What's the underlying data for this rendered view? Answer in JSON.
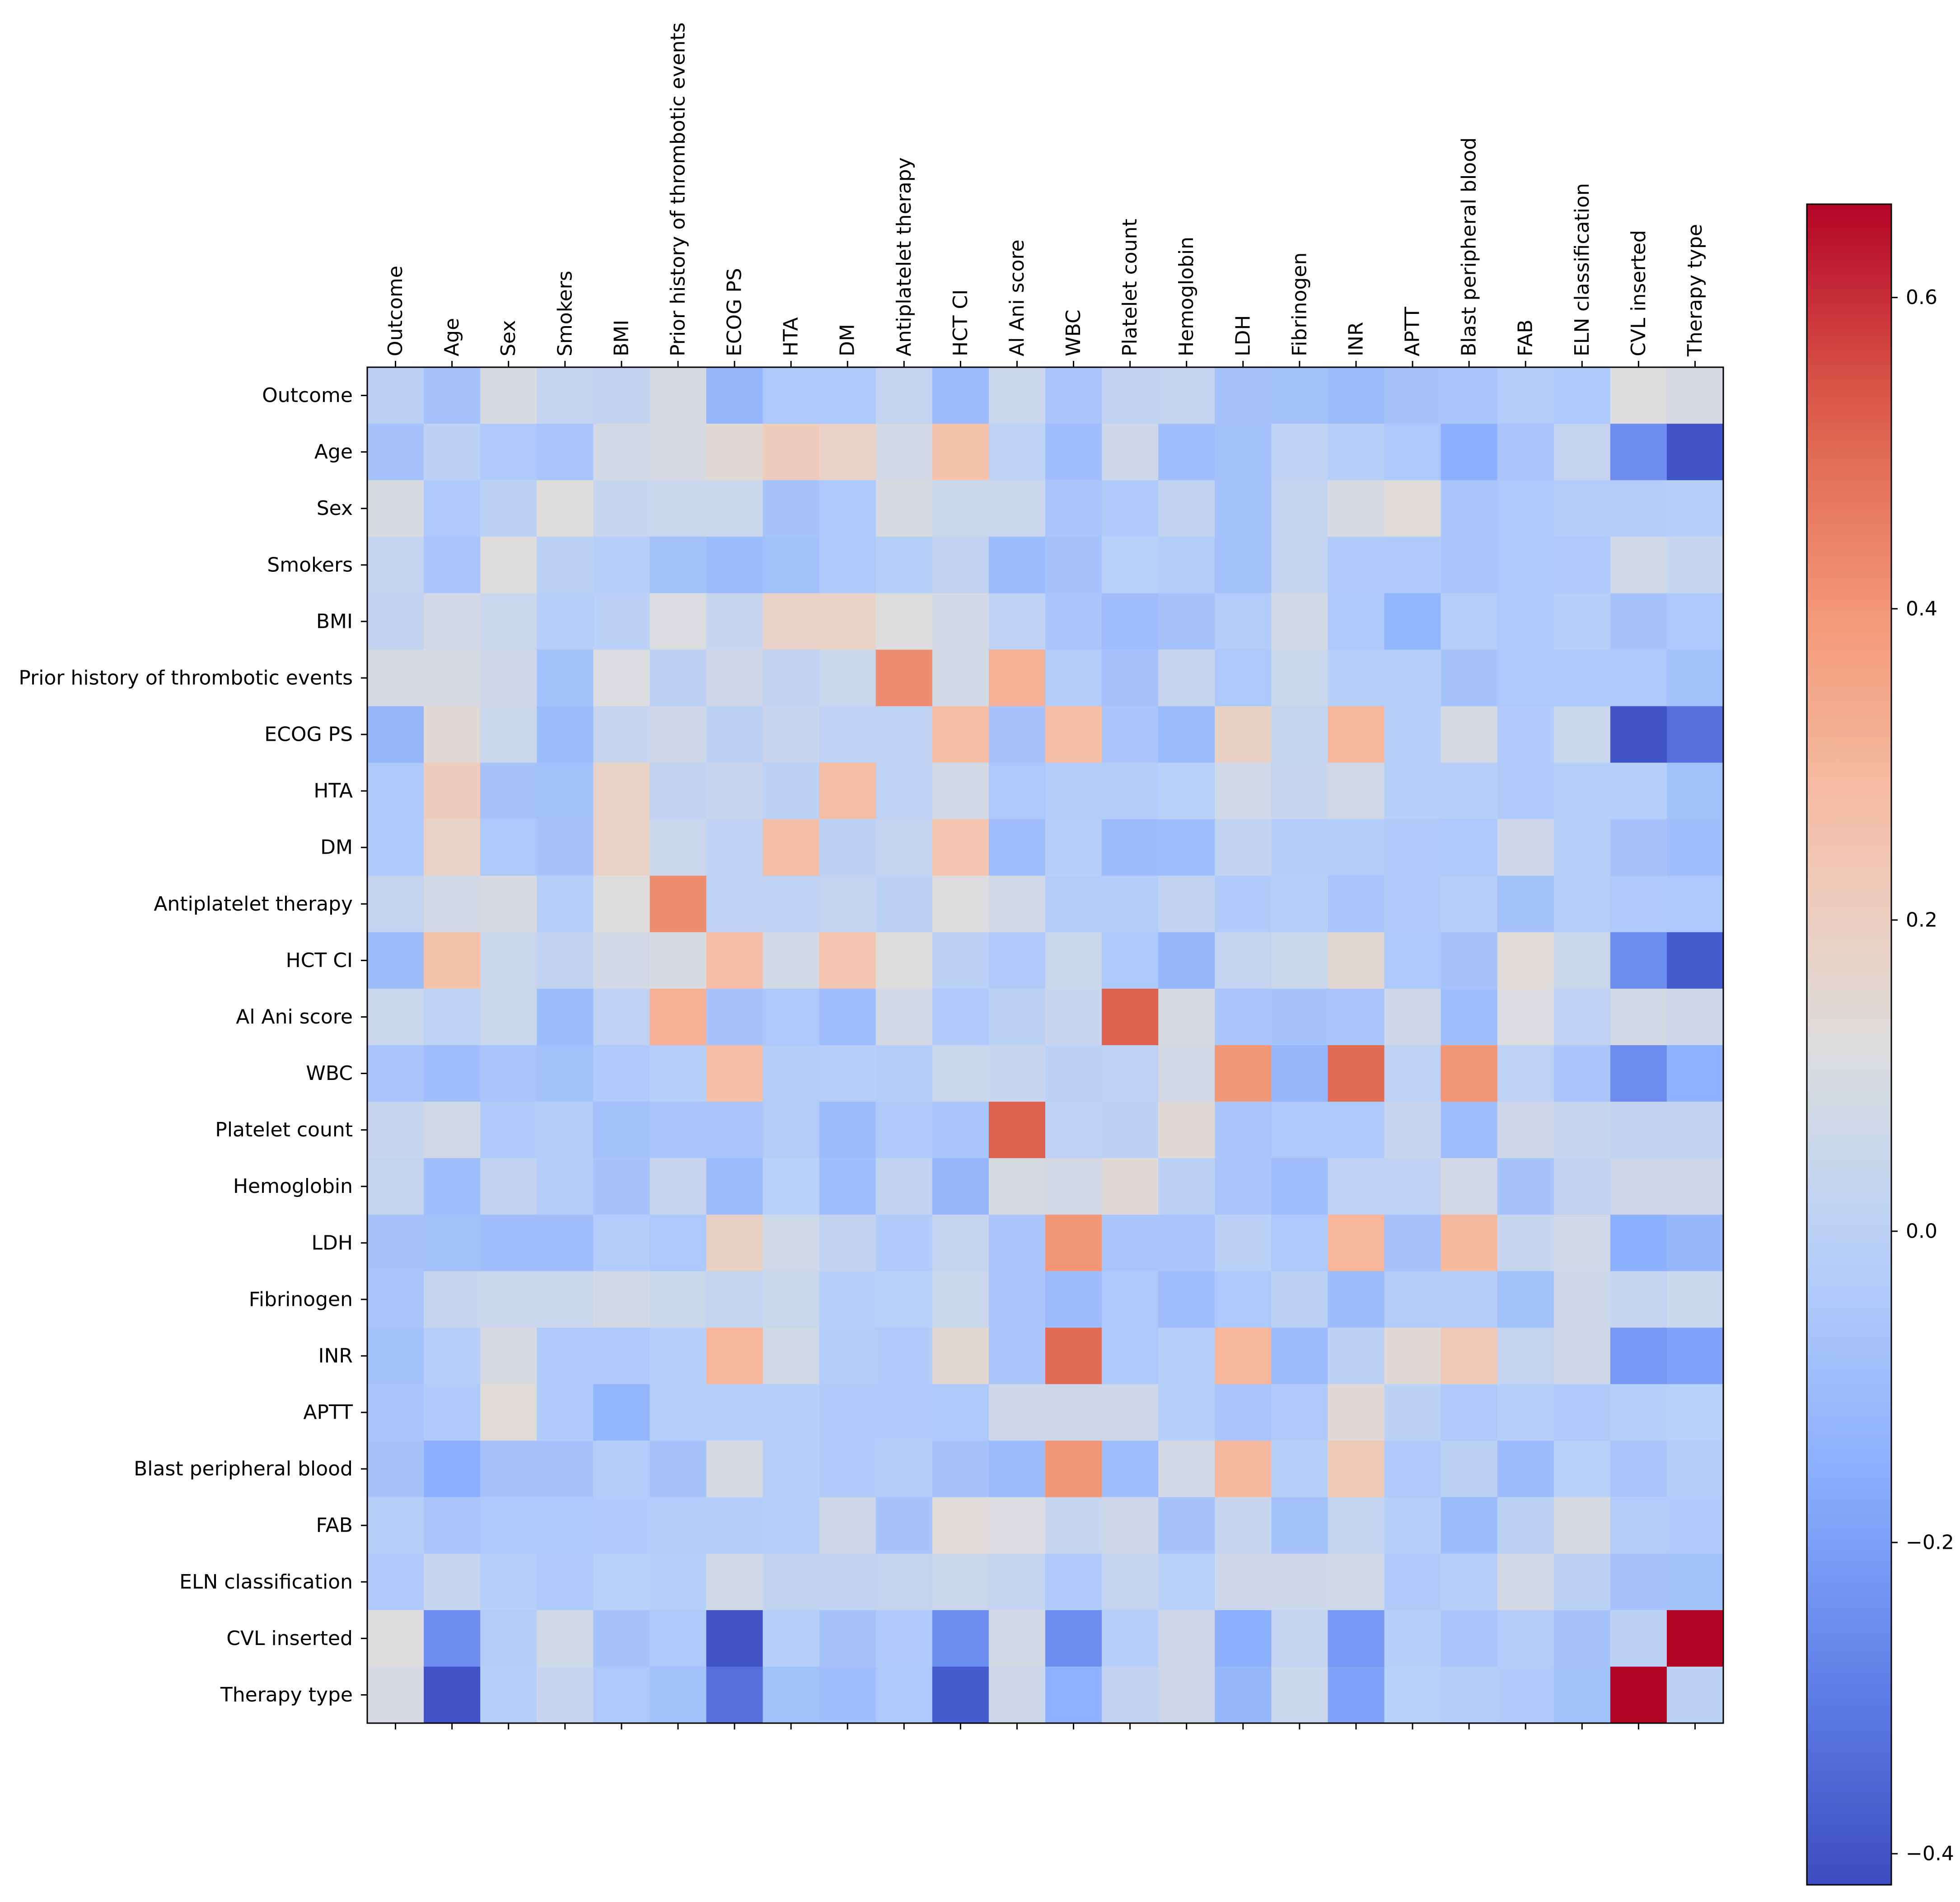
{
  "chart_data": {
    "type": "heatmap",
    "title": "",
    "xlabel": "",
    "ylabel": "",
    "labels": [
      "Outcome",
      "Age",
      "Sex",
      "Smokers",
      "BMI",
      "Prior history of thrombotic events",
      "ECOG PS",
      "HTA",
      "DM",
      "Antiplatelet therapy",
      "HCT CI",
      "Al Ani score",
      "WBC",
      "Platelet count",
      "Hemoglobin",
      "LDH",
      "Fibrinogen",
      "INR",
      "APTT",
      "Blast peripheral blood",
      "FAB",
      "ELN classification",
      "CVL inserted",
      "Therapy type"
    ],
    "colormap": "coolwarm",
    "vmin": -0.42,
    "vmax": 0.66,
    "colorbar_ticks": [
      -0.4,
      -0.2,
      0.0,
      0.2,
      0.4,
      0.6
    ],
    "colorbar_tick_labels": [
      "−0.4",
      "−0.2",
      "0.0",
      "0.2",
      "0.4",
      "0.6"
    ],
    "matrix": [
      [
        0.0,
        -0.07,
        0.1,
        0.03,
        0.02,
        0.09,
        -0.12,
        -0.05,
        -0.05,
        0.03,
        -0.1,
        0.05,
        -0.06,
        0.02,
        0.03,
        -0.07,
        -0.08,
        -0.1,
        -0.07,
        -0.06,
        -0.03,
        -0.05,
        0.12,
        0.09
      ],
      [
        -0.07,
        0.0,
        -0.04,
        -0.06,
        0.08,
        0.09,
        0.14,
        0.21,
        0.18,
        0.08,
        0.26,
        0.01,
        -0.09,
        0.06,
        -0.09,
        -0.08,
        0.01,
        -0.02,
        -0.05,
        -0.15,
        -0.06,
        0.03,
        -0.25,
        -0.4
      ],
      [
        0.1,
        -0.04,
        0.0,
        0.12,
        0.04,
        0.05,
        0.05,
        -0.07,
        -0.05,
        0.1,
        0.05,
        0.05,
        -0.06,
        -0.04,
        0.02,
        -0.08,
        0.03,
        0.1,
        0.13,
        -0.06,
        -0.05,
        -0.03,
        -0.03,
        -0.02
      ],
      [
        0.03,
        -0.06,
        0.12,
        0.0,
        -0.02,
        -0.08,
        -0.1,
        -0.08,
        -0.05,
        -0.02,
        0.02,
        -0.1,
        -0.07,
        -0.01,
        -0.03,
        -0.08,
        0.03,
        -0.04,
        -0.04,
        -0.06,
        -0.05,
        -0.04,
        0.07,
        0.04
      ],
      [
        0.02,
        0.08,
        0.05,
        -0.02,
        0.0,
        0.11,
        0.04,
        0.18,
        0.18,
        0.12,
        0.08,
        0.01,
        -0.06,
        -0.09,
        -0.07,
        -0.03,
        0.08,
        -0.05,
        -0.13,
        -0.02,
        -0.05,
        -0.02,
        -0.07,
        -0.05
      ],
      [
        0.09,
        0.09,
        0.06,
        -0.08,
        0.11,
        0.0,
        0.06,
        0.02,
        0.05,
        0.42,
        0.08,
        0.32,
        -0.03,
        -0.07,
        0.04,
        -0.05,
        0.05,
        -0.02,
        -0.02,
        -0.07,
        -0.05,
        -0.05,
        -0.05,
        -0.08
      ],
      [
        -0.12,
        0.14,
        0.05,
        -0.1,
        0.04,
        0.06,
        0.0,
        0.04,
        0.01,
        0.01,
        0.27,
        -0.07,
        0.27,
        -0.06,
        -0.1,
        0.19,
        0.03,
        0.3,
        -0.02,
        0.09,
        -0.04,
        0.05,
        -0.4,
        -0.33
      ],
      [
        -0.05,
        0.21,
        -0.07,
        -0.08,
        0.18,
        0.02,
        0.04,
        0.0,
        0.27,
        0.01,
        0.08,
        -0.05,
        -0.03,
        -0.03,
        -0.01,
        0.07,
        0.04,
        0.07,
        -0.02,
        -0.02,
        -0.04,
        -0.02,
        -0.02,
        -0.08
      ],
      [
        -0.05,
        0.18,
        -0.05,
        -0.07,
        0.18,
        0.05,
        0.01,
        0.27,
        0.0,
        0.03,
        0.25,
        -0.09,
        -0.02,
        -0.1,
        -0.09,
        0.02,
        -0.03,
        -0.03,
        -0.04,
        -0.05,
        0.06,
        -0.02,
        -0.07,
        -0.09
      ],
      [
        0.03,
        0.08,
        0.1,
        -0.02,
        0.12,
        0.42,
        0.01,
        0.01,
        0.03,
        0.0,
        0.12,
        0.08,
        -0.03,
        -0.03,
        0.02,
        -0.04,
        -0.02,
        -0.06,
        -0.04,
        -0.02,
        -0.08,
        -0.02,
        -0.04,
        -0.05
      ],
      [
        -0.1,
        0.26,
        0.05,
        0.02,
        0.08,
        0.1,
        0.27,
        0.08,
        0.25,
        0.12,
        0.0,
        -0.04,
        0.05,
        -0.05,
        -0.12,
        0.03,
        0.05,
        0.15,
        -0.05,
        -0.07,
        0.13,
        0.05,
        -0.25,
        -0.38
      ],
      [
        0.05,
        0.01,
        0.05,
        -0.1,
        0.01,
        0.32,
        -0.07,
        -0.05,
        -0.09,
        0.08,
        -0.04,
        0.0,
        0.04,
        0.52,
        0.09,
        -0.06,
        -0.07,
        -0.06,
        0.06,
        -0.09,
        0.11,
        0.01,
        0.08,
        0.06
      ],
      [
        -0.06,
        -0.09,
        -0.06,
        -0.08,
        -0.04,
        -0.02,
        0.27,
        -0.03,
        -0.02,
        -0.03,
        0.05,
        0.04,
        0.0,
        0.01,
        0.08,
        0.4,
        -0.12,
        0.5,
        0.01,
        0.4,
        0.01,
        -0.06,
        -0.25,
        -0.14
      ],
      [
        0.04,
        0.07,
        -0.04,
        -0.03,
        -0.08,
        -0.06,
        -0.06,
        -0.03,
        -0.1,
        -0.04,
        -0.06,
        0.52,
        0.01,
        0.0,
        0.14,
        -0.06,
        -0.05,
        -0.05,
        0.04,
        -0.09,
        0.06,
        0.04,
        0.02,
        0.02
      ],
      [
        0.03,
        -0.09,
        0.02,
        -0.03,
        -0.07,
        0.04,
        -0.1,
        -0.01,
        -0.09,
        0.02,
        -0.12,
        0.09,
        0.08,
        0.14,
        0.0,
        -0.06,
        -0.09,
        0.01,
        0.01,
        0.08,
        -0.07,
        0.02,
        0.06,
        0.06
      ],
      [
        -0.07,
        -0.08,
        -0.09,
        -0.09,
        -0.03,
        -0.05,
        0.19,
        0.07,
        0.02,
        -0.04,
        0.03,
        -0.06,
        0.4,
        -0.06,
        -0.06,
        0.0,
        -0.05,
        0.3,
        -0.07,
        0.29,
        0.04,
        0.07,
        -0.15,
        -0.12
      ],
      [
        -0.06,
        0.04,
        0.05,
        0.05,
        0.08,
        0.05,
        0.03,
        0.05,
        -0.02,
        -0.01,
        0.05,
        -0.06,
        -0.1,
        -0.05,
        -0.09,
        -0.05,
        0.0,
        -0.1,
        -0.03,
        -0.03,
        -0.08,
        0.06,
        0.03,
        0.05
      ],
      [
        -0.08,
        -0.02,
        0.1,
        -0.04,
        -0.04,
        -0.02,
        0.3,
        0.07,
        -0.03,
        -0.04,
        0.15,
        -0.06,
        0.5,
        -0.05,
        -0.02,
        0.3,
        -0.1,
        0.0,
        0.14,
        0.22,
        0.03,
        0.06,
        -0.22,
        -0.19
      ],
      [
        -0.06,
        -0.04,
        0.13,
        -0.04,
        -0.13,
        -0.02,
        -0.02,
        -0.02,
        -0.04,
        -0.04,
        -0.05,
        0.06,
        0.06,
        0.06,
        -0.02,
        -0.06,
        -0.04,
        0.14,
        0.0,
        -0.04,
        -0.02,
        -0.04,
        -0.02,
        -0.01
      ],
      [
        -0.07,
        -0.15,
        -0.07,
        -0.07,
        -0.03,
        -0.07,
        0.09,
        -0.02,
        -0.04,
        -0.03,
        -0.07,
        -0.1,
        0.4,
        -0.09,
        0.08,
        0.29,
        -0.02,
        0.22,
        -0.04,
        0.0,
        -0.1,
        -0.01,
        -0.06,
        -0.03
      ],
      [
        -0.02,
        -0.06,
        -0.05,
        -0.05,
        -0.04,
        -0.03,
        -0.03,
        -0.02,
        0.06,
        -0.07,
        0.13,
        0.11,
        0.04,
        0.06,
        -0.07,
        0.04,
        -0.08,
        0.03,
        -0.02,
        -0.1,
        0.0,
        0.09,
        -0.03,
        -0.04
      ],
      [
        -0.04,
        0.04,
        -0.02,
        -0.04,
        -0.01,
        -0.02,
        0.07,
        0.02,
        0.02,
        0.03,
        0.05,
        0.03,
        -0.04,
        0.03,
        -0.01,
        0.06,
        0.06,
        0.07,
        -0.04,
        -0.02,
        0.08,
        0.0,
        -0.07,
        -0.08
      ],
      [
        0.12,
        -0.25,
        -0.03,
        0.07,
        -0.07,
        -0.05,
        -0.4,
        -0.02,
        -0.07,
        -0.04,
        -0.25,
        0.08,
        -0.25,
        -0.02,
        0.06,
        -0.15,
        0.03,
        -0.22,
        -0.02,
        -0.06,
        -0.03,
        -0.07,
        0.0,
        0.66
      ],
      [
        0.09,
        -0.4,
        -0.02,
        0.04,
        -0.05,
        -0.08,
        -0.33,
        -0.08,
        -0.09,
        -0.05,
        -0.38,
        0.06,
        -0.14,
        0.02,
        0.06,
        -0.12,
        0.05,
        -0.19,
        -0.01,
        -0.03,
        -0.04,
        -0.08,
        0.66,
        0.0
      ]
    ]
  }
}
